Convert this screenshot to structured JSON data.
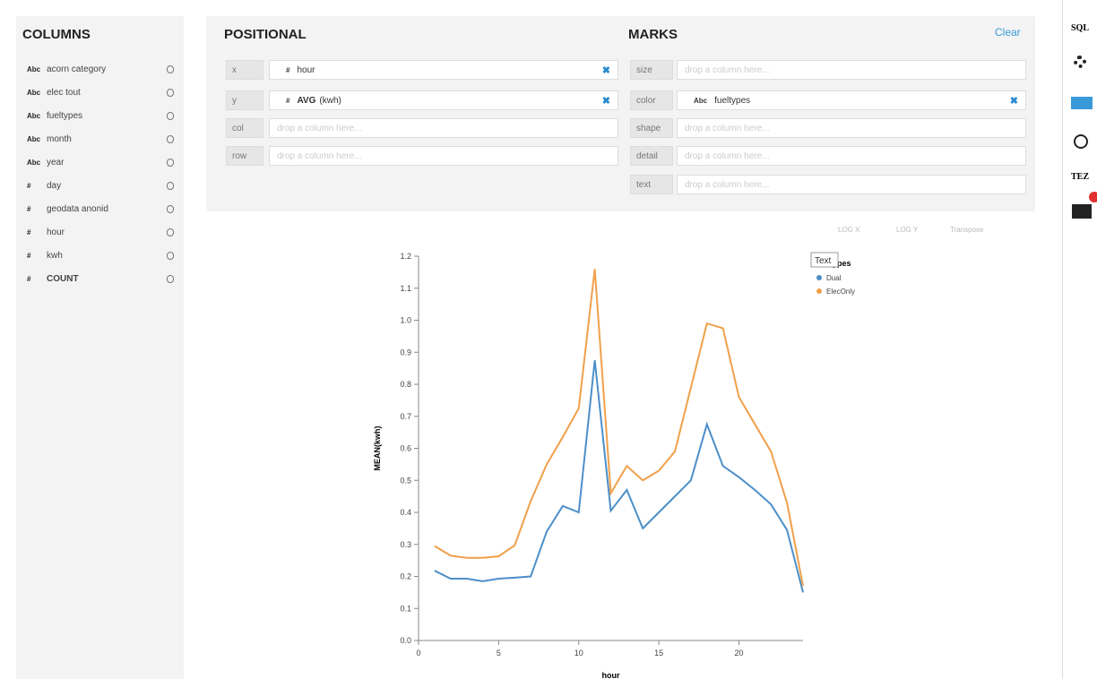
{
  "columns_panel": {
    "title": "COLUMNS",
    "items": [
      {
        "type": "Abc",
        "name": "acorn category"
      },
      {
        "type": "Abc",
        "name": "elec tout"
      },
      {
        "type": "Abc",
        "name": "fueltypes"
      },
      {
        "type": "Abc",
        "name": "month"
      },
      {
        "type": "Abc",
        "name": "year"
      },
      {
        "type": "#",
        "name": "day"
      },
      {
        "type": "#",
        "name": "geodata anonid"
      },
      {
        "type": "#",
        "name": "hour"
      },
      {
        "type": "#",
        "name": "kwh"
      },
      {
        "type": "#",
        "name": "COUNT"
      }
    ]
  },
  "positional": {
    "title": "POSITIONAL",
    "shelves": [
      {
        "channel": "x",
        "type": "#",
        "field": "hour"
      },
      {
        "channel": "y",
        "type": "#",
        "aggregate": "AVG",
        "field": "(kwh)"
      },
      {
        "channel": "col",
        "placeholder": "drop a column here..."
      },
      {
        "channel": "row",
        "placeholder": "drop a column here..."
      }
    ]
  },
  "marks": {
    "title": "MARKS",
    "clear": "Clear",
    "shelves": [
      {
        "channel": "size",
        "placeholder": "drop a column here..."
      },
      {
        "channel": "color",
        "type": "Abc",
        "field": "fueltypes"
      },
      {
        "channel": "shape",
        "placeholder": "drop a column here..."
      },
      {
        "channel": "detail",
        "placeholder": "drop a column here..."
      },
      {
        "channel": "text",
        "placeholder": "drop a column here..."
      }
    ]
  },
  "toolbar": {
    "log_x": "LOG X",
    "log_y": "LOG Y",
    "transpose": "Transpose",
    "tooltip": "Text"
  },
  "sidebar": {
    "sql": "SQL",
    "tez": "TEZ"
  },
  "chart_data": {
    "type": "line",
    "x_label": "hour",
    "y_label": "MEAN(kwh)",
    "legend_title": "fueltypes",
    "legend": "top-right",
    "x": [
      1,
      2,
      3,
      4,
      5,
      6,
      7,
      8,
      9,
      10,
      11,
      12,
      13,
      14,
      15,
      16,
      17,
      18,
      19,
      20,
      21,
      22,
      23,
      24
    ],
    "series": [
      {
        "name": "Dual",
        "color": "#4c8fc9",
        "values": [
          0.218,
          0.193,
          0.193,
          0.185,
          0.193,
          0.196,
          0.2,
          0.34,
          0.42,
          0.4,
          0.875,
          0.405,
          0.47,
          0.35,
          0.4,
          0.45,
          0.5,
          0.675,
          0.545,
          0.51,
          0.47,
          0.425,
          0.345,
          0.15
        ]
      },
      {
        "name": "ElecOnly",
        "color": "#f0a04b",
        "values": [
          0.295,
          0.265,
          0.258,
          0.258,
          0.263,
          0.297,
          0.435,
          0.55,
          0.635,
          0.725,
          1.16,
          0.46,
          0.545,
          0.5,
          0.53,
          0.59,
          0.79,
          0.99,
          0.975,
          0.76,
          0.675,
          0.59,
          0.43,
          0.17
        ]
      }
    ],
    "xlim": [
      0,
      24
    ],
    "xticks": [
      0,
      5,
      10,
      15,
      20
    ],
    "ylim": [
      0,
      1.2
    ],
    "yticks": [
      {
        "value": 0,
        "label": "0.0"
      },
      0.1,
      0.2,
      0.3,
      0.4,
      0.5,
      0.6,
      0.7,
      0.8,
      0.9,
      {
        "value": 1,
        "label": "1.0"
      },
      1.1,
      1.2
    ]
  }
}
